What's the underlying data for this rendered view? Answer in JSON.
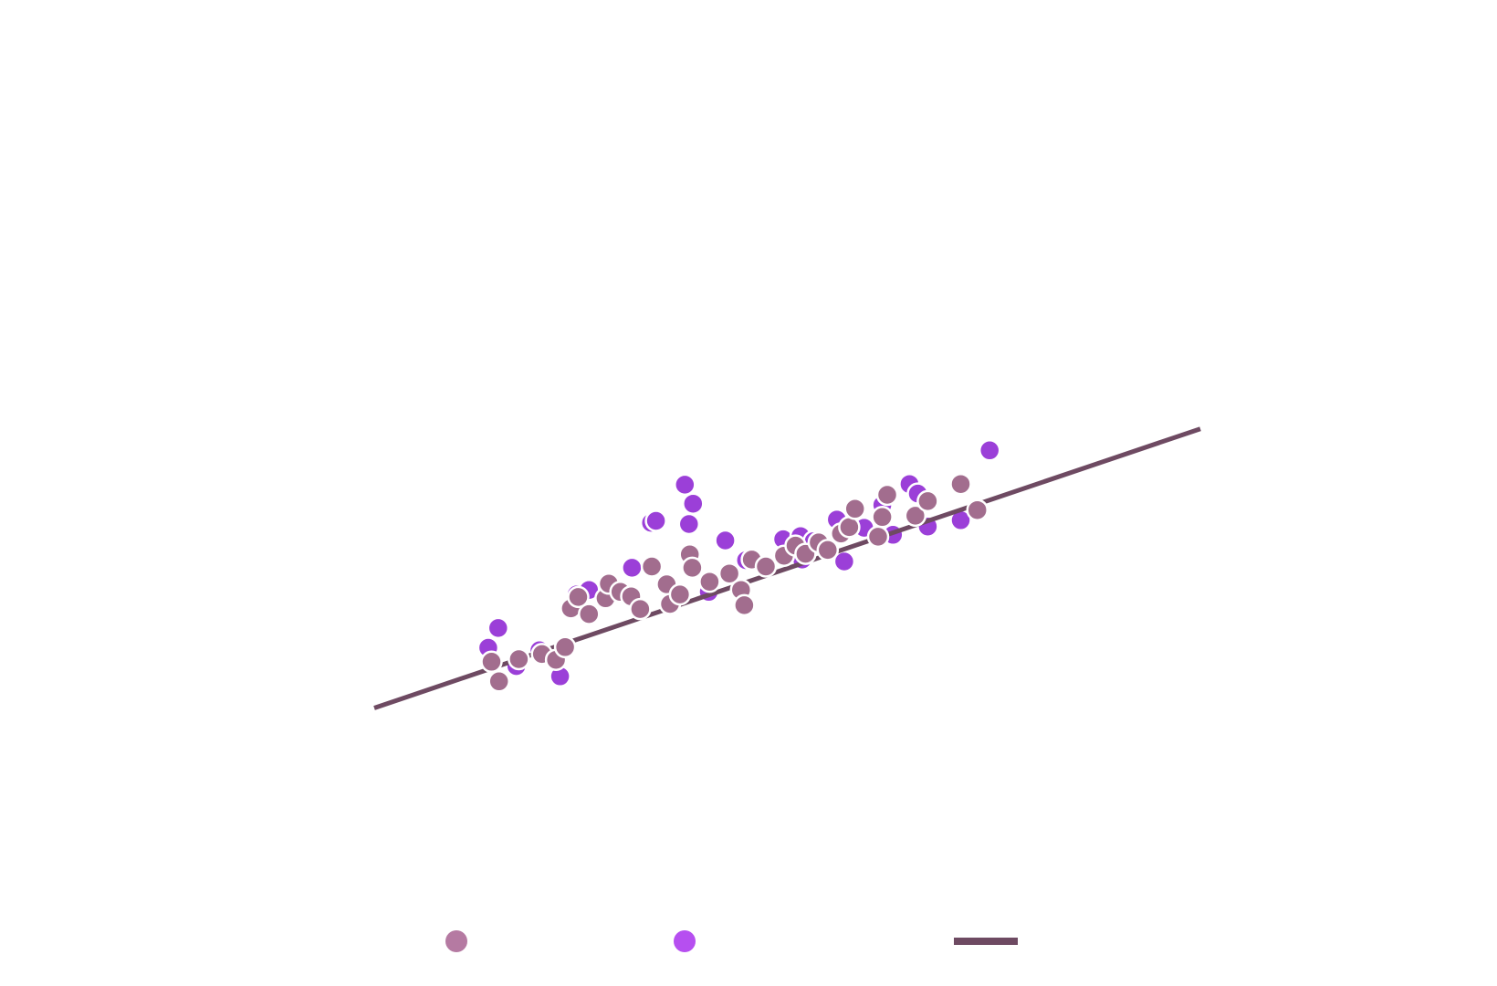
{
  "chart_data": {
    "type": "scatter",
    "title": "",
    "xlabel": "",
    "ylabel": "",
    "grid": false,
    "axes_visible": false,
    "legend_placement": "bottom-center",
    "xlim": [
      0,
      100
    ],
    "ylim": [
      0,
      100
    ],
    "series": [
      {
        "kind": "scatter",
        "color": "#a26d8e",
        "marker": "circle",
        "x": [
          14.2,
          15.1,
          17.5,
          20.3,
          22.0,
          23.1,
          23.8,
          24.7,
          26.0,
          28.0,
          28.4,
          29.8,
          31.1,
          32.2,
          33.6,
          35.4,
          35.8,
          37.0,
          38.2,
          38.5,
          40.6,
          43.0,
          44.4,
          44.8,
          45.7,
          47.4,
          49.6,
          51.0,
          52.2,
          53.8,
          54.9,
          56.5,
          57.5,
          58.2,
          61.0,
          61.5,
          62.1,
          65.5,
          67.0,
          71.0,
          73.0
        ],
        "y": [
          17.3,
          14.2,
          17.7,
          18.5,
          17.6,
          19.6,
          25.7,
          27.5,
          24.8,
          27.3,
          29.6,
          28.3,
          27.6,
          25.6,
          32.3,
          29.5,
          26.4,
          27.9,
          34.2,
          32.1,
          29.9,
          31.2,
          28.6,
          26.2,
          33.4,
          32.3,
          34.0,
          35.6,
          34.3,
          36.1,
          34.9,
          37.5,
          38.5,
          41.4,
          37.0,
          40.1,
          43.6,
          40.3,
          42.6,
          45.3,
          41.2
        ]
      },
      {
        "kind": "scatter",
        "color": "#9b3fd8",
        "marker": "circle",
        "x": [
          13.8,
          15.0,
          17.2,
          20.0,
          22.5,
          24.5,
          26.0,
          31.2,
          33.5,
          34.1,
          37.6,
          38.1,
          38.6,
          40.5,
          42.5,
          45.0,
          49.5,
          51.6,
          51.8,
          53.2,
          56.0,
          56.9,
          59.3,
          61.5,
          62.8,
          64.8,
          65.8,
          67.0,
          71.0,
          74.5
        ],
        "y": [
          19.5,
          22.6,
          16.6,
          19.1,
          15.0,
          27.9,
          28.6,
          32.1,
          39.2,
          39.5,
          45.2,
          39.0,
          42.2,
          28.3,
          36.4,
          33.3,
          36.6,
          37.1,
          33.4,
          36.3,
          39.7,
          33.1,
          38.4,
          42.0,
          37.3,
          45.3,
          43.8,
          38.6,
          39.6,
          50.6
        ]
      },
      {
        "kind": "line",
        "color": "#6e4a62",
        "x": [
          0,
          100
        ],
        "y": [
          10,
          54
        ]
      }
    ]
  }
}
